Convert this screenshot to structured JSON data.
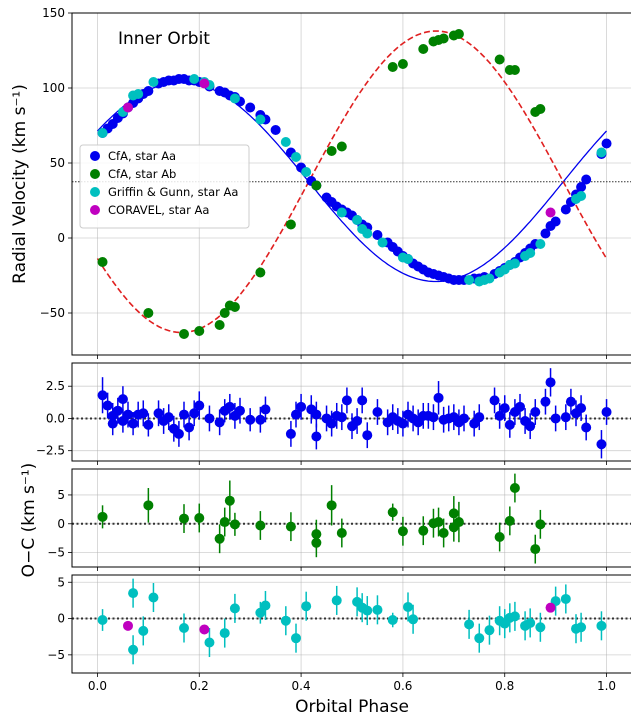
{
  "chart_data": [
    {
      "type": "scatter",
      "panel": "main",
      "title": "",
      "annotation": "Inner Orbit",
      "ylabel": "Radial Velocity (km s⁻¹)",
      "xlabel": "",
      "xlim": [
        -0.05,
        1.05
      ],
      "ylim": [
        -78,
        150
      ],
      "xticks": [
        0.0,
        0.2,
        0.4,
        0.6,
        0.8,
        1.0
      ],
      "yticks": [
        -50,
        0,
        50,
        100,
        150
      ],
      "grid": true,
      "legend_position": "center-left",
      "systemic_velocity": 37.5,
      "colors": {
        "aa": "#0000ee",
        "ab": "#008000",
        "griffin": "#00bfbf",
        "coravel": "#bf00bf",
        "model_ab": "#e02020",
        "model_aa": "#0000ee"
      },
      "model": {
        "K_aa": 66.5,
        "K_ab": 100.5,
        "gamma": 37.5
      },
      "series": [
        {
          "name": "CfA, star Aa",
          "key": "aa",
          "color": "#0000ee",
          "x": [
            0.01,
            0.02,
            0.03,
            0.04,
            0.05,
            0.06,
            0.07,
            0.08,
            0.09,
            0.1,
            0.12,
            0.13,
            0.14,
            0.15,
            0.16,
            0.17,
            0.18,
            0.19,
            0.2,
            0.22,
            0.24,
            0.25,
            0.26,
            0.27,
            0.28,
            0.3,
            0.32,
            0.33,
            0.35,
            0.38,
            0.4,
            0.42,
            0.43,
            0.45,
            0.46,
            0.47,
            0.48,
            0.49,
            0.5,
            0.51,
            0.52,
            0.53,
            0.55,
            0.57,
            0.58,
            0.59,
            0.6,
            0.61,
            0.62,
            0.63,
            0.64,
            0.65,
            0.66,
            0.67,
            0.68,
            0.69,
            0.7,
            0.71,
            0.72,
            0.74,
            0.75,
            0.76,
            0.78,
            0.79,
            0.8,
            0.81,
            0.82,
            0.83,
            0.84,
            0.85,
            0.86,
            0.88,
            0.89,
            0.9,
            0.92,
            0.93,
            0.94,
            0.95,
            0.96,
            0.99,
            1.0
          ],
          "y": [
            70,
            73,
            76,
            80,
            83,
            87,
            90,
            93,
            96,
            98,
            103,
            104,
            105,
            105,
            106,
            106,
            105,
            105,
            104,
            101,
            98,
            97,
            95,
            94,
            91,
            87,
            82,
            79,
            72,
            57,
            47,
            38,
            35,
            27,
            24,
            21,
            19,
            17,
            15,
            12,
            9,
            7,
            2,
            -3,
            -6,
            -9,
            -12,
            -14,
            -17,
            -19,
            -21,
            -23,
            -24,
            -25,
            -26,
            -27,
            -28,
            -28,
            -28,
            -27,
            -27,
            -26,
            -24,
            -22,
            -20,
            -18,
            -16,
            -13,
            -10,
            -7,
            -4,
            3,
            8,
            11,
            19,
            24,
            29,
            34,
            39,
            56,
            63
          ]
        },
        {
          "name": "CfA, star Ab",
          "key": "ab",
          "color": "#008000",
          "x": [
            0.01,
            0.1,
            0.17,
            0.2,
            0.24,
            0.25,
            0.26,
            0.27,
            0.32,
            0.38,
            0.43,
            0.46,
            0.48,
            0.58,
            0.6,
            0.64,
            0.66,
            0.67,
            0.68,
            0.7,
            0.71,
            0.79,
            0.81,
            0.82,
            0.86,
            0.87
          ],
          "y": [
            -16,
            -50,
            -64,
            -62,
            -58,
            -50,
            -45,
            -46,
            -23,
            9,
            35,
            58,
            61,
            114,
            116,
            126,
            131,
            132,
            133,
            135,
            136,
            119,
            112,
            112,
            84,
            86
          ]
        },
        {
          "name": "Griffin & Gunn, star Aa",
          "key": "griffin",
          "color": "#00bfbf",
          "x": [
            0.01,
            0.05,
            0.07,
            0.08,
            0.11,
            0.19,
            0.21,
            0.22,
            0.27,
            0.32,
            0.37,
            0.39,
            0.41,
            0.48,
            0.51,
            0.52,
            0.53,
            0.56,
            0.6,
            0.61,
            0.73,
            0.75,
            0.76,
            0.77,
            0.79,
            0.8,
            0.81,
            0.82,
            0.84,
            0.85,
            0.87,
            0.94,
            0.95,
            0.99
          ],
          "y": [
            70,
            84,
            95,
            96,
            104,
            106,
            104,
            102,
            93,
            79,
            64,
            54,
            44,
            17,
            12,
            6,
            3,
            -3,
            -13,
            -14,
            -28,
            -29,
            -28,
            -27,
            -23,
            -21,
            -18,
            -17,
            -12,
            -10,
            -4,
            26,
            28,
            57
          ]
        },
        {
          "name": "CORAVEL, star Aa",
          "key": "coravel",
          "color": "#bf00bf",
          "x": [
            0.06,
            0.21,
            0.89
          ],
          "y": [
            87,
            103,
            17
          ]
        }
      ]
    },
    {
      "type": "scatter",
      "panel": "residuals-aa",
      "ylabel": "",
      "xlim": [
        -0.05,
        1.05
      ],
      "ylim": [
        -3.3,
        4.3
      ],
      "yticks": [
        -2.5,
        0.0,
        2.5
      ],
      "grid": true,
      "series": [
        {
          "name": "CfA, star Aa",
          "color": "#0000ee",
          "x": [
            0.01,
            0.02,
            0.03,
            0.03,
            0.04,
            0.05,
            0.05,
            0.06,
            0.07,
            0.08,
            0.09,
            0.1,
            0.12,
            0.13,
            0.14,
            0.15,
            0.16,
            0.17,
            0.18,
            0.19,
            0.2,
            0.22,
            0.24,
            0.25,
            0.26,
            0.27,
            0.28,
            0.3,
            0.32,
            0.33,
            0.38,
            0.39,
            0.4,
            0.42,
            0.43,
            0.43,
            0.45,
            0.46,
            0.47,
            0.48,
            0.49,
            0.5,
            0.51,
            0.52,
            0.53,
            0.55,
            0.57,
            0.58,
            0.59,
            0.6,
            0.61,
            0.62,
            0.63,
            0.64,
            0.65,
            0.66,
            0.67,
            0.68,
            0.69,
            0.7,
            0.71,
            0.72,
            0.74,
            0.75,
            0.78,
            0.79,
            0.8,
            0.81,
            0.82,
            0.83,
            0.84,
            0.85,
            0.86,
            0.88,
            0.89,
            0.9,
            0.92,
            0.93,
            0.94,
            0.95,
            0.96,
            0.99,
            1.0
          ],
          "y": [
            1.8,
            1.0,
            0.2,
            -0.4,
            0.6,
            1.5,
            -0.2,
            0.3,
            -0.4,
            0.3,
            0.4,
            -0.5,
            0.4,
            -0.2,
            0.1,
            -0.8,
            -1.2,
            0.3,
            -0.7,
            0.4,
            1.0,
            0.0,
            -0.3,
            0.6,
            0.9,
            0.2,
            0.6,
            -0.1,
            -0.1,
            0.7,
            -1.2,
            0.3,
            0.9,
            0.7,
            -1.4,
            0.3,
            0.0,
            -0.4,
            0.2,
            0.1,
            1.4,
            -0.6,
            -0.2,
            1.4,
            -1.3,
            0.5,
            -0.3,
            0.1,
            -0.2,
            -0.4,
            0.3,
            0.0,
            -0.3,
            0.2,
            0.2,
            0.1,
            1.6,
            -0.1,
            0.0,
            0.1,
            -0.3,
            0.0,
            -0.4,
            0.1,
            1.4,
            0.2,
            0.8,
            -0.5,
            0.5,
            0.9,
            -0.2,
            -0.6,
            0.5,
            1.3,
            2.8,
            0.0,
            0.1,
            1.3,
            0.4,
            0.8,
            -0.7,
            -2.0,
            0.5
          ],
          "err": [
            1.4,
            1.0,
            1.0,
            0.9,
            1.0,
            1.0,
            0.9,
            1.0,
            0.9,
            1.0,
            1.0,
            0.9,
            1.0,
            1.0,
            1.0,
            1.0,
            1.0,
            1.0,
            1.0,
            1.0,
            1.1,
            1.0,
            1.0,
            0.9,
            1.0,
            1.0,
            1.0,
            0.9,
            1.0,
            1.0,
            1.0,
            1.0,
            1.0,
            1.1,
            1.0,
            1.0,
            1.0,
            1.0,
            1.0,
            1.0,
            1.0,
            1.0,
            1.0,
            1.0,
            1.0,
            1.0,
            1.0,
            1.0,
            1.0,
            1.0,
            1.0,
            1.0,
            1.0,
            1.0,
            1.0,
            1.0,
            1.3,
            1.0,
            1.0,
            1.0,
            1.0,
            1.0,
            1.0,
            1.0,
            1.0,
            1.0,
            1.0,
            1.0,
            1.0,
            1.0,
            1.0,
            1.0,
            1.0,
            1.0,
            1.1,
            1.0,
            1.0,
            1.0,
            1.0,
            1.0,
            1.0,
            1.1,
            1.0
          ]
        }
      ]
    },
    {
      "type": "scatter",
      "panel": "residuals-ab",
      "ylabel": "",
      "xlim": [
        -0.05,
        1.05
      ],
      "ylim": [
        -7.5,
        9.5
      ],
      "yticks": [
        -5,
        0,
        5
      ],
      "grid": true,
      "series": [
        {
          "name": "CfA, star Ab",
          "color": "#008000",
          "x": [
            0.01,
            0.1,
            0.17,
            0.2,
            0.24,
            0.25,
            0.26,
            0.27,
            0.32,
            0.38,
            0.43,
            0.43,
            0.46,
            0.48,
            0.58,
            0.6,
            0.64,
            0.66,
            0.67,
            0.68,
            0.7,
            0.7,
            0.71,
            0.79,
            0.81,
            0.82,
            0.86,
            0.87
          ],
          "y": [
            1.2,
            3.2,
            0.9,
            1.0,
            -2.6,
            0.3,
            4.0,
            -0.1,
            -0.3,
            -0.5,
            -1.8,
            -3.3,
            3.2,
            -1.6,
            2.0,
            -1.3,
            -1.2,
            0.1,
            0.3,
            -1.6,
            1.8,
            -0.6,
            0.3,
            -2.3,
            0.5,
            6.2,
            -4.4,
            -0.1
          ],
          "err": [
            2.0,
            3.0,
            2.5,
            2.5,
            2.5,
            2.5,
            3.5,
            2.0,
            2.5,
            2.5,
            2.5,
            2.5,
            3.5,
            2.5,
            1.5,
            2.5,
            2.5,
            2.5,
            2.5,
            2.5,
            3.0,
            2.5,
            3.5,
            2.5,
            2.5,
            2.5,
            2.5,
            2.5
          ]
        }
      ]
    },
    {
      "type": "scatter",
      "panel": "residuals-griffin",
      "ylabel": "",
      "xlabel": "Orbital Phase",
      "xlim": [
        -0.05,
        1.05
      ],
      "ylim": [
        -7.5,
        6.0
      ],
      "yticks": [
        -5,
        0,
        5
      ],
      "grid": true,
      "shared_ylabel": "O−C (km s⁻¹)",
      "series": [
        {
          "name": "Griffin & Gunn, star Aa",
          "color": "#00bfbf",
          "x": [
            0.01,
            0.07,
            0.07,
            0.09,
            0.11,
            0.17,
            0.22,
            0.25,
            0.27,
            0.32,
            0.33,
            0.37,
            0.39,
            0.41,
            0.47,
            0.51,
            0.52,
            0.53,
            0.55,
            0.58,
            0.61,
            0.62,
            0.73,
            0.75,
            0.77,
            0.79,
            0.8,
            0.81,
            0.82,
            0.84,
            0.85,
            0.87,
            0.9,
            0.92,
            0.94,
            0.95,
            0.99
          ],
          "y": [
            -0.2,
            3.5,
            -4.3,
            -1.7,
            2.9,
            -1.3,
            -3.3,
            -2.0,
            1.4,
            0.8,
            1.8,
            -0.3,
            -2.7,
            1.7,
            2.5,
            2.3,
            1.5,
            1.1,
            1.2,
            -0.2,
            1.6,
            -0.1,
            -0.8,
            -2.7,
            -1.6,
            -0.3,
            -0.7,
            0.1,
            0.3,
            -1.0,
            -0.6,
            -1.2,
            2.4,
            2.7,
            -1.4,
            -1.2,
            -1.0
          ],
          "err": [
            1.5,
            2.0,
            2.0,
            2.0,
            2.0,
            2.0,
            2.0,
            2.0,
            2.0,
            1.5,
            2.0,
            2.0,
            2.0,
            2.0,
            2.0,
            2.0,
            2.0,
            2.0,
            2.0,
            1.0,
            2.0,
            2.0,
            2.0,
            2.0,
            2.0,
            2.0,
            2.0,
            2.0,
            2.0,
            2.0,
            2.0,
            2.0,
            2.0,
            2.0,
            2.0,
            2.0,
            2.0
          ]
        },
        {
          "name": "CORAVEL, star Aa",
          "color": "#bf00bf",
          "x": [
            0.06,
            0.21,
            0.89
          ],
          "y": [
            -1.0,
            -1.5,
            1.5
          ],
          "err": [
            0,
            0,
            0
          ]
        }
      ]
    }
  ]
}
